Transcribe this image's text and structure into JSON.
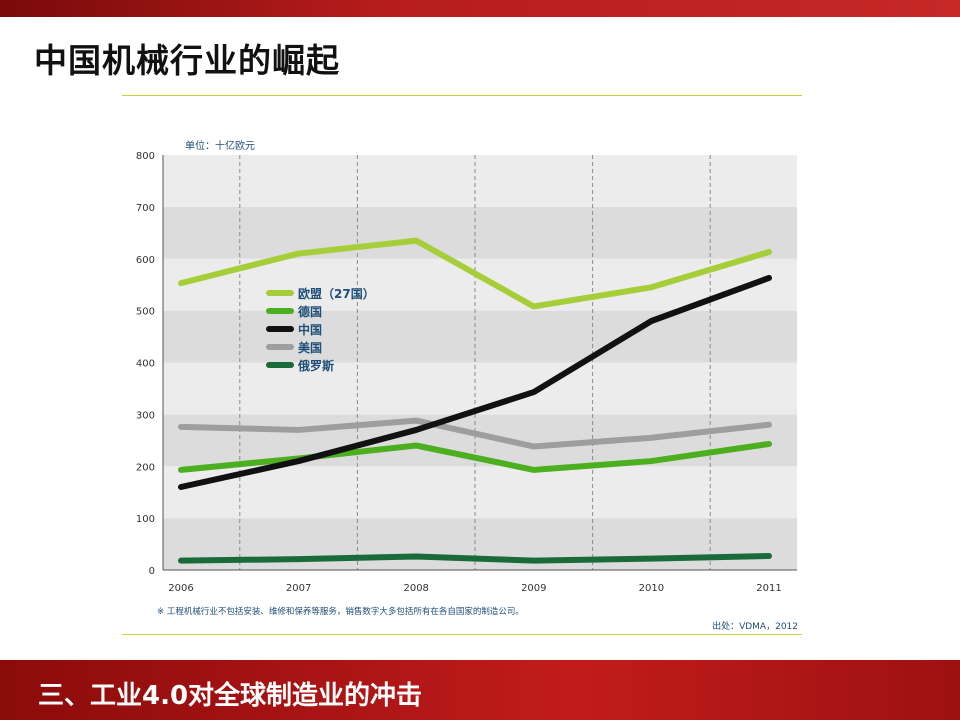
{
  "page": {
    "title": "中国机械行业的崛起",
    "footer_title": "三、工业4.0对全球制造业的冲击"
  },
  "colors": {
    "eu27": "#a6ce39",
    "germany": "#4caf1f",
    "china": "#111111",
    "usa": "#9e9e9e",
    "russia": "#1b6b3a",
    "accent_red": "#c21b1b",
    "label_blue": "#1f4e79"
  },
  "chart_data": {
    "type": "line",
    "unit_label": "单位：十亿欧元",
    "x": [
      "2006",
      "2007",
      "2008",
      "2009",
      "2010",
      "2011"
    ],
    "ylim": [
      0,
      800
    ],
    "yticks": [
      "0",
      "100",
      "200",
      "300",
      "400",
      "500",
      "600",
      "700",
      "800"
    ],
    "series": [
      {
        "key": "eu27",
        "name": "欧盟（27国）",
        "values": [
          553,
          610,
          635,
          508,
          545,
          613
        ]
      },
      {
        "key": "germany",
        "name": "德国",
        "values": [
          193,
          215,
          240,
          193,
          210,
          243
        ]
      },
      {
        "key": "china",
        "name": "中国",
        "values": [
          160,
          210,
          270,
          343,
          480,
          563
        ]
      },
      {
        "key": "usa",
        "name": "美国",
        "values": [
          276,
          270,
          288,
          238,
          255,
          280
        ]
      },
      {
        "key": "russia",
        "name": "俄罗斯",
        "values": [
          18,
          21,
          26,
          18,
          22,
          27
        ]
      }
    ],
    "note": "※ 工程机械行业不包括安装、维修和保养等服务，销售数字大多包括所有在各自国家的制造公司。",
    "source": "出处：VDMA，2012",
    "grid": true,
    "legend_position": "left-middle"
  }
}
